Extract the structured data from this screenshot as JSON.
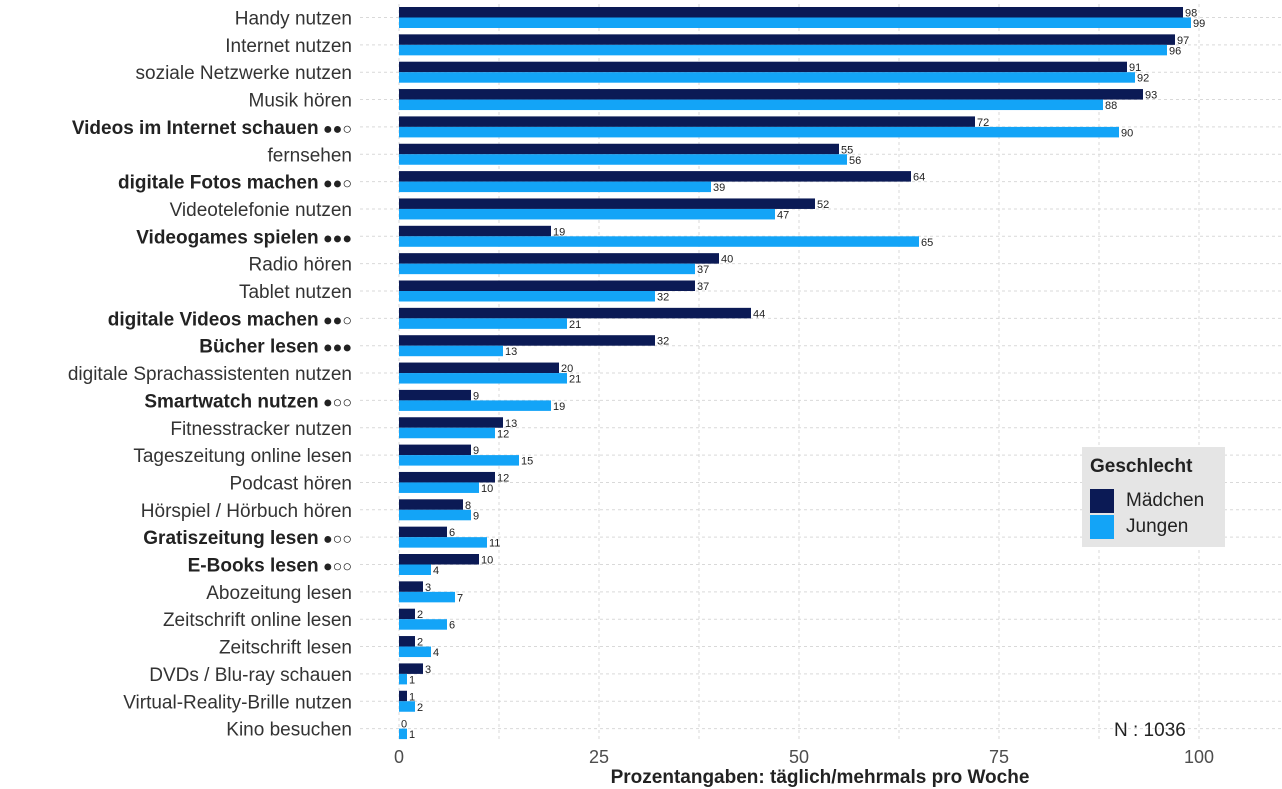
{
  "chart_data": {
    "type": "bar",
    "orientation": "horizontal",
    "xlabel": "Prozentangaben: täglich/mehrmals pro Woche",
    "xlim": [
      0,
      110
    ],
    "x_ticks": [
      "0",
      "25",
      "50",
      "75",
      "100"
    ],
    "x_tick_values": [
      0,
      25,
      50,
      75,
      100
    ],
    "grid": true,
    "legend": {
      "title": "Geschlecht",
      "position": "right",
      "entries": [
        "Mädchen",
        "Jungen"
      ]
    },
    "note": "N : 1036",
    "colors": {
      "maedchen": "#0b1a55",
      "jungen": "#13a4f7"
    },
    "categories": [
      {
        "label": "Handy nutzen",
        "bold": false,
        "marker": ""
      },
      {
        "label": "Internet nutzen",
        "bold": false,
        "marker": ""
      },
      {
        "label": "soziale Netzwerke nutzen",
        "bold": false,
        "marker": ""
      },
      {
        "label": "Musik hören",
        "bold": false,
        "marker": ""
      },
      {
        "label": "Videos im Internet schauen",
        "bold": true,
        "marker": " ●●○"
      },
      {
        "label": "fernsehen",
        "bold": false,
        "marker": ""
      },
      {
        "label": "digitale Fotos machen",
        "bold": true,
        "marker": " ●●○"
      },
      {
        "label": "Videotelefonie nutzen",
        "bold": false,
        "marker": ""
      },
      {
        "label": "Videogames spielen",
        "bold": true,
        "marker": " ●●●"
      },
      {
        "label": "Radio hören",
        "bold": false,
        "marker": ""
      },
      {
        "label": "Tablet nutzen",
        "bold": false,
        "marker": ""
      },
      {
        "label": "digitale Videos machen",
        "bold": true,
        "marker": " ●●○"
      },
      {
        "label": "Bücher lesen",
        "bold": true,
        "marker": " ●●●"
      },
      {
        "label": "digitale Sprachassistenten nutzen",
        "bold": false,
        "marker": ""
      },
      {
        "label": "Smartwatch nutzen",
        "bold": true,
        "marker": " ●○○"
      },
      {
        "label": "Fitnesstracker nutzen",
        "bold": false,
        "marker": ""
      },
      {
        "label": "Tageszeitung online lesen",
        "bold": false,
        "marker": ""
      },
      {
        "label": "Podcast hören",
        "bold": false,
        "marker": ""
      },
      {
        "label": "Hörspiel / Hörbuch hören",
        "bold": false,
        "marker": ""
      },
      {
        "label": "Gratiszeitung lesen",
        "bold": true,
        "marker": " ●○○"
      },
      {
        "label": "E-Books lesen",
        "bold": true,
        "marker": " ●○○"
      },
      {
        "label": "Abozeitung lesen",
        "bold": false,
        "marker": ""
      },
      {
        "label": "Zeitschrift online lesen",
        "bold": false,
        "marker": ""
      },
      {
        "label": "Zeitschrift lesen",
        "bold": false,
        "marker": ""
      },
      {
        "label": "DVDs / Blu-ray schauen",
        "bold": false,
        "marker": ""
      },
      {
        "label": "Virtual-Reality-Brille nutzen",
        "bold": false,
        "marker": ""
      },
      {
        "label": "Kino besuchen",
        "bold": false,
        "marker": ""
      }
    ],
    "series": [
      {
        "name": "Mädchen",
        "values": [
          98,
          97,
          91,
          93,
          72,
          55,
          64,
          52,
          19,
          40,
          37,
          44,
          32,
          20,
          9,
          13,
          9,
          12,
          8,
          6,
          10,
          3,
          2,
          2,
          3,
          1,
          0
        ]
      },
      {
        "name": "Jungen",
        "values": [
          99,
          96,
          92,
          88,
          90,
          56,
          39,
          47,
          65,
          37,
          32,
          21,
          13,
          21,
          19,
          12,
          15,
          10,
          9,
          11,
          4,
          7,
          6,
          4,
          1,
          2,
          1
        ]
      }
    ]
  }
}
